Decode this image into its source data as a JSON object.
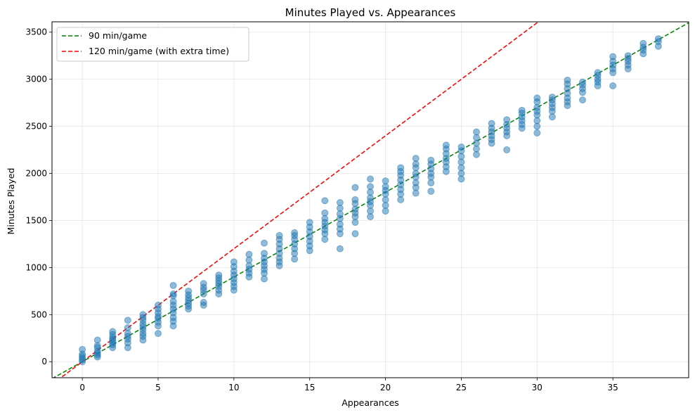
{
  "chart_data": {
    "type": "scatter",
    "title": "Minutes Played vs. Appearances",
    "xlabel": "Appearances",
    "ylabel": "Minutes Played",
    "xlim": [
      -2,
      40
    ],
    "ylim": [
      -170,
      3610
    ],
    "xticks": [
      0,
      5,
      10,
      15,
      20,
      25,
      30,
      35
    ],
    "yticks": [
      0,
      500,
      1000,
      1500,
      2000,
      2500,
      3000,
      3500
    ],
    "grid": true,
    "legend_position": "top-left",
    "point_color": "#1f77b4",
    "point_alpha": 0.5,
    "reference_lines": [
      {
        "name": "90 min/game",
        "slope": 90,
        "color": "#008000",
        "style": "dashed"
      },
      {
        "name": "120 min/game (with extra time)",
        "slope": 120,
        "color": "#ff0000",
        "style": "dashed"
      }
    ],
    "points": [
      [
        0,
        0
      ],
      [
        0,
        20
      ],
      [
        0,
        40
      ],
      [
        0,
        60
      ],
      [
        0,
        80
      ],
      [
        0,
        130
      ],
      [
        1,
        50
      ],
      [
        1,
        70
      ],
      [
        1,
        90
      ],
      [
        1,
        110
      ],
      [
        1,
        150
      ],
      [
        1,
        170
      ],
      [
        1,
        230
      ],
      [
        2,
        150
      ],
      [
        2,
        180
      ],
      [
        2,
        200
      ],
      [
        2,
        220
      ],
      [
        2,
        240
      ],
      [
        2,
        260
      ],
      [
        2,
        290
      ],
      [
        2,
        320
      ],
      [
        3,
        150
      ],
      [
        3,
        200
      ],
      [
        3,
        240
      ],
      [
        3,
        270
      ],
      [
        3,
        300
      ],
      [
        3,
        360
      ],
      [
        3,
        440
      ],
      [
        4,
        230
      ],
      [
        4,
        270
      ],
      [
        4,
        300
      ],
      [
        4,
        340
      ],
      [
        4,
        370
      ],
      [
        4,
        400
      ],
      [
        4,
        440
      ],
      [
        4,
        470
      ],
      [
        4,
        500
      ],
      [
        5,
        300
      ],
      [
        5,
        380
      ],
      [
        5,
        420
      ],
      [
        5,
        460
      ],
      [
        5,
        480
      ],
      [
        5,
        520
      ],
      [
        5,
        560
      ],
      [
        5,
        600
      ],
      [
        6,
        380
      ],
      [
        6,
        430
      ],
      [
        6,
        470
      ],
      [
        6,
        520
      ],
      [
        6,
        560
      ],
      [
        6,
        600
      ],
      [
        6,
        640
      ],
      [
        6,
        700
      ],
      [
        6,
        720
      ],
      [
        6,
        810
      ],
      [
        7,
        560
      ],
      [
        7,
        590
      ],
      [
        7,
        620
      ],
      [
        7,
        650
      ],
      [
        7,
        680
      ],
      [
        7,
        710
      ],
      [
        7,
        750
      ],
      [
        8,
        600
      ],
      [
        8,
        630
      ],
      [
        8,
        720
      ],
      [
        8,
        760
      ],
      [
        8,
        790
      ],
      [
        8,
        830
      ],
      [
        9,
        720
      ],
      [
        9,
        760
      ],
      [
        9,
        800
      ],
      [
        9,
        830
      ],
      [
        9,
        860
      ],
      [
        9,
        890
      ],
      [
        9,
        920
      ],
      [
        10,
        760
      ],
      [
        10,
        800
      ],
      [
        10,
        840
      ],
      [
        10,
        880
      ],
      [
        10,
        920
      ],
      [
        10,
        960
      ],
      [
        10,
        1010
      ],
      [
        10,
        1060
      ],
      [
        11,
        900
      ],
      [
        11,
        940
      ],
      [
        11,
        980
      ],
      [
        11,
        1020
      ],
      [
        11,
        1080
      ],
      [
        11,
        1140
      ],
      [
        12,
        880
      ],
      [
        12,
        940
      ],
      [
        12,
        980
      ],
      [
        12,
        1020
      ],
      [
        12,
        1060
      ],
      [
        12,
        1100
      ],
      [
        12,
        1150
      ],
      [
        12,
        1260
      ],
      [
        13,
        1020
      ],
      [
        13,
        1060
      ],
      [
        13,
        1100
      ],
      [
        13,
        1150
      ],
      [
        13,
        1200
      ],
      [
        13,
        1250
      ],
      [
        13,
        1300
      ],
      [
        13,
        1340
      ],
      [
        14,
        1090
      ],
      [
        14,
        1150
      ],
      [
        14,
        1200
      ],
      [
        14,
        1250
      ],
      [
        14,
        1300
      ],
      [
        14,
        1340
      ],
      [
        14,
        1370
      ],
      [
        15,
        1180
      ],
      [
        15,
        1230
      ],
      [
        15,
        1280
      ],
      [
        15,
        1330
      ],
      [
        15,
        1380
      ],
      [
        15,
        1430
      ],
      [
        15,
        1480
      ],
      [
        16,
        1300
      ],
      [
        16,
        1360
      ],
      [
        16,
        1400
      ],
      [
        16,
        1440
      ],
      [
        16,
        1480
      ],
      [
        16,
        1520
      ],
      [
        16,
        1580
      ],
      [
        16,
        1710
      ],
      [
        17,
        1200
      ],
      [
        17,
        1360
      ],
      [
        17,
        1410
      ],
      [
        17,
        1460
      ],
      [
        17,
        1520
      ],
      [
        17,
        1570
      ],
      [
        17,
        1630
      ],
      [
        17,
        1690
      ],
      [
        18,
        1360
      ],
      [
        18,
        1480
      ],
      [
        18,
        1540
      ],
      [
        18,
        1580
      ],
      [
        18,
        1620
      ],
      [
        18,
        1680
      ],
      [
        18,
        1720
      ],
      [
        18,
        1850
      ],
      [
        19,
        1540
      ],
      [
        19,
        1600
      ],
      [
        19,
        1660
      ],
      [
        19,
        1700
      ],
      [
        19,
        1740
      ],
      [
        19,
        1800
      ],
      [
        19,
        1860
      ],
      [
        19,
        1940
      ],
      [
        20,
        1600
      ],
      [
        20,
        1660
      ],
      [
        20,
        1720
      ],
      [
        20,
        1780
      ],
      [
        20,
        1820
      ],
      [
        20,
        1860
      ],
      [
        20,
        1920
      ],
      [
        21,
        1720
      ],
      [
        21,
        1780
      ],
      [
        21,
        1830
      ],
      [
        21,
        1880
      ],
      [
        21,
        1930
      ],
      [
        21,
        1980
      ],
      [
        21,
        2020
      ],
      [
        21,
        2060
      ],
      [
        22,
        1790
      ],
      [
        22,
        1850
      ],
      [
        22,
        1900
      ],
      [
        22,
        1960
      ],
      [
        22,
        2000
      ],
      [
        22,
        2060
      ],
      [
        22,
        2100
      ],
      [
        22,
        2160
      ],
      [
        23,
        1810
      ],
      [
        23,
        1900
      ],
      [
        23,
        1960
      ],
      [
        23,
        2000
      ],
      [
        23,
        2050
      ],
      [
        23,
        2100
      ],
      [
        23,
        2140
      ],
      [
        24,
        2020
      ],
      [
        24,
        2070
      ],
      [
        24,
        2120
      ],
      [
        24,
        2160
      ],
      [
        24,
        2210
      ],
      [
        24,
        2260
      ],
      [
        24,
        2300
      ],
      [
        25,
        1940
      ],
      [
        25,
        2000
      ],
      [
        25,
        2060
      ],
      [
        25,
        2120
      ],
      [
        25,
        2180
      ],
      [
        25,
        2240
      ],
      [
        25,
        2280
      ],
      [
        26,
        2200
      ],
      [
        26,
        2260
      ],
      [
        26,
        2320
      ],
      [
        26,
        2380
      ],
      [
        26,
        2440
      ],
      [
        27,
        2320
      ],
      [
        27,
        2360
      ],
      [
        27,
        2400
      ],
      [
        27,
        2440
      ],
      [
        27,
        2480
      ],
      [
        27,
        2530
      ],
      [
        28,
        2250
      ],
      [
        28,
        2400
      ],
      [
        28,
        2440
      ],
      [
        28,
        2480
      ],
      [
        28,
        2520
      ],
      [
        28,
        2570
      ],
      [
        29,
        2480
      ],
      [
        29,
        2520
      ],
      [
        29,
        2560
      ],
      [
        29,
        2600
      ],
      [
        29,
        2640
      ],
      [
        29,
        2670
      ],
      [
        30,
        2430
      ],
      [
        30,
        2500
      ],
      [
        30,
        2560
      ],
      [
        30,
        2620
      ],
      [
        30,
        2660
      ],
      [
        30,
        2700
      ],
      [
        30,
        2760
      ],
      [
        30,
        2800
      ],
      [
        31,
        2600
      ],
      [
        31,
        2660
      ],
      [
        31,
        2700
      ],
      [
        31,
        2740
      ],
      [
        31,
        2780
      ],
      [
        31,
        2810
      ],
      [
        32,
        2720
      ],
      [
        32,
        2760
      ],
      [
        32,
        2800
      ],
      [
        32,
        2850
      ],
      [
        32,
        2900
      ],
      [
        32,
        2950
      ],
      [
        32,
        2990
      ],
      [
        33,
        2780
      ],
      [
        33,
        2860
      ],
      [
        33,
        2900
      ],
      [
        33,
        2940
      ],
      [
        33,
        2970
      ],
      [
        34,
        2930
      ],
      [
        34,
        2970
      ],
      [
        34,
        3000
      ],
      [
        34,
        3040
      ],
      [
        34,
        3070
      ],
      [
        35,
        2930
      ],
      [
        35,
        3070
      ],
      [
        35,
        3110
      ],
      [
        35,
        3150
      ],
      [
        35,
        3190
      ],
      [
        35,
        3240
      ],
      [
        36,
        3110
      ],
      [
        36,
        3150
      ],
      [
        36,
        3190
      ],
      [
        36,
        3220
      ],
      [
        36,
        3250
      ],
      [
        37,
        3270
      ],
      [
        37,
        3310
      ],
      [
        37,
        3340
      ],
      [
        37,
        3380
      ],
      [
        38,
        3350
      ],
      [
        38,
        3400
      ],
      [
        38,
        3430
      ]
    ]
  }
}
